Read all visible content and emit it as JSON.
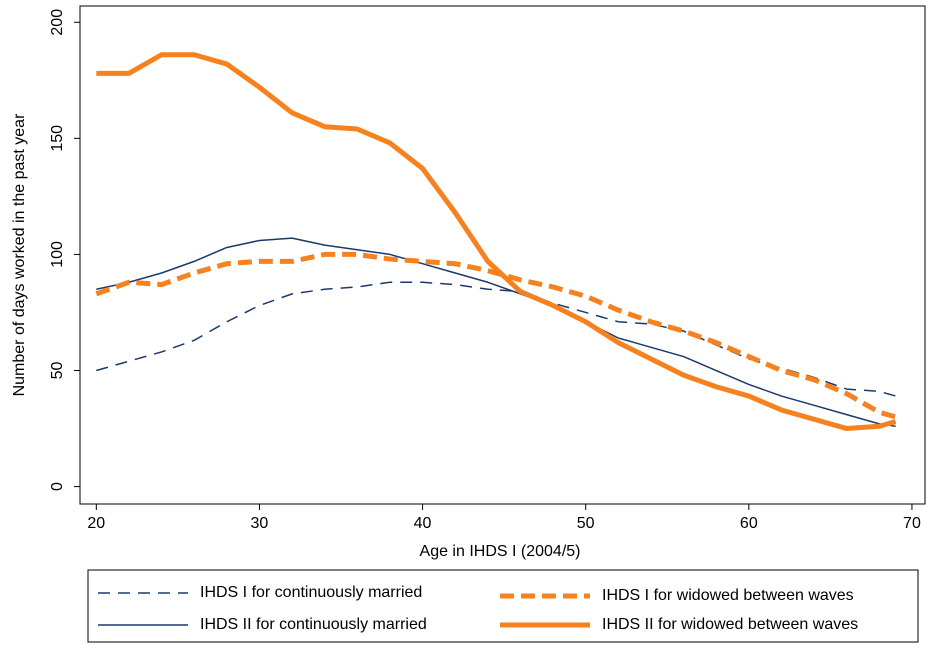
{
  "chart_data": {
    "type": "line",
    "x_label": "Age in IHDS I (2004/5)",
    "y_label": "Number of days worked in the past year",
    "x": [
      20,
      22,
      24,
      26,
      28,
      30,
      32,
      34,
      36,
      38,
      40,
      42,
      44,
      46,
      48,
      50,
      52,
      54,
      56,
      58,
      60,
      62,
      64,
      66,
      68,
      69
    ],
    "series": [
      {
        "name": "IHDS I for continuously married",
        "color": "#1a3a6b",
        "style": "dashed",
        "width": 1.5,
        "values": [
          50,
          54,
          58,
          63,
          71,
          78,
          83,
          85,
          86,
          88,
          88,
          87,
          85,
          84,
          79,
          75,
          71,
          70,
          67,
          61,
          55,
          51,
          47,
          42,
          41,
          39
        ]
      },
      {
        "name": "IHDS II for continuously married",
        "color": "#1a3a6b",
        "style": "solid",
        "width": 1.5,
        "values": [
          85,
          88,
          92,
          97,
          103,
          106,
          107,
          104,
          102,
          100,
          96,
          92,
          88,
          83,
          78,
          71,
          64,
          60,
          56,
          50,
          44,
          39,
          35,
          31,
          27,
          26
        ]
      },
      {
        "name": "IHDS I for widowed between waves",
        "color": "#f5821f",
        "style": "dashed",
        "width": 5,
        "values": [
          83,
          88,
          87,
          92,
          96,
          97,
          97,
          100,
          100,
          98,
          97,
          96,
          93,
          89,
          86,
          82,
          76,
          71,
          67,
          62,
          56,
          50,
          46,
          40,
          32,
          30
        ]
      },
      {
        "name": "IHDS II for widowed between waves",
        "color": "#f5821f",
        "style": "solid",
        "width": 5,
        "values": [
          178,
          178,
          186,
          186,
          182,
          172,
          161,
          155,
          154,
          148,
          137,
          118,
          97,
          84,
          78,
          71,
          62,
          55,
          48,
          43,
          39,
          33,
          29,
          25,
          26,
          28
        ]
      }
    ],
    "xlim": [
      19,
      70.8
    ],
    "xticks": [
      20,
      30,
      40,
      50,
      60,
      70
    ],
    "ylim": [
      -7.5,
      207
    ],
    "yticks": [
      0,
      50,
      100,
      150,
      200
    ]
  }
}
